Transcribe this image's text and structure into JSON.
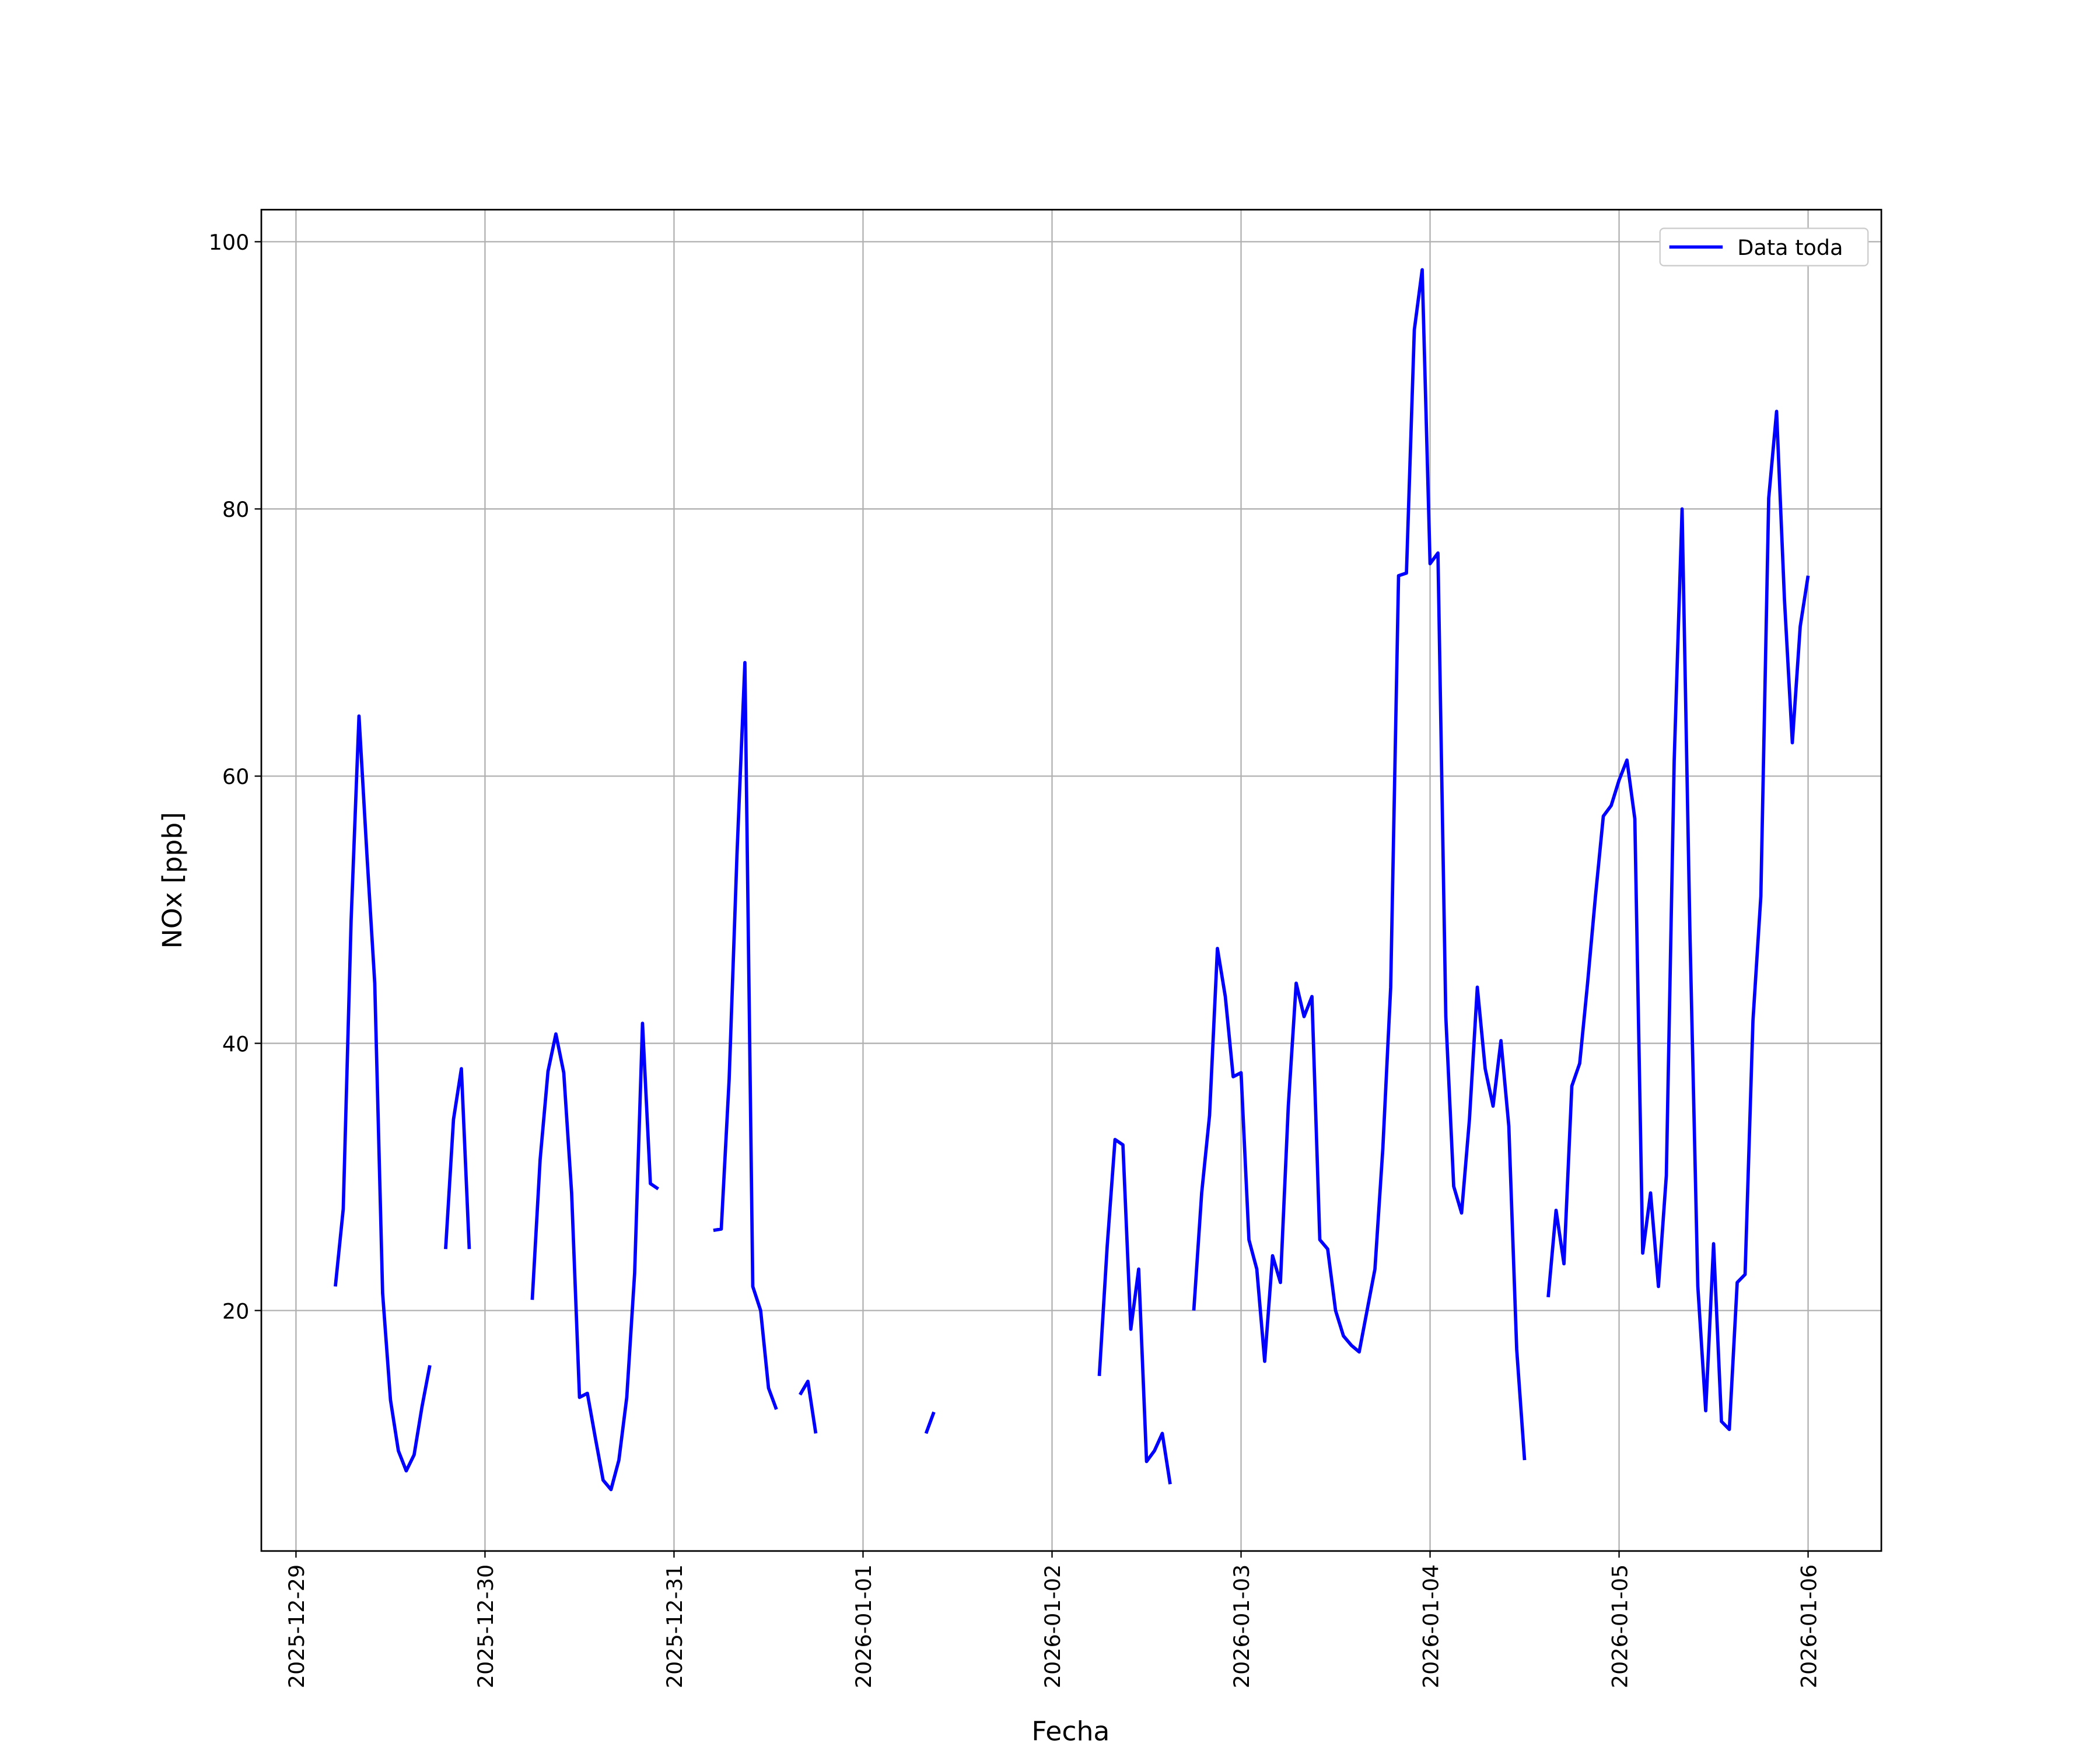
{
  "chart_data": {
    "type": "line",
    "xlabel": "Fecha",
    "ylabel": "NOx [ppb]",
    "x": [
      "2025-12-29 05:00",
      "2025-12-29 06:00",
      "2025-12-29 07:00",
      "2025-12-29 08:00",
      "2025-12-29 09:00",
      "2025-12-29 10:00",
      "2025-12-29 11:00",
      "2025-12-29 12:00",
      "2025-12-29 13:00",
      "2025-12-29 14:00",
      "2025-12-29 15:00",
      "2025-12-29 16:00",
      "2025-12-29 17:00",
      "2025-12-29 18:00",
      "2025-12-29 19:00",
      "2025-12-29 20:00",
      "2025-12-29 21:00",
      "2025-12-29 22:00",
      "2025-12-29 23:00",
      "2025-12-30 06:00",
      "2025-12-30 07:00",
      "2025-12-30 08:00",
      "2025-12-30 09:00",
      "2025-12-30 10:00",
      "2025-12-30 11:00",
      "2025-12-30 12:00",
      "2025-12-30 13:00",
      "2025-12-30 14:00",
      "2025-12-30 15:00",
      "2025-12-30 16:00",
      "2025-12-30 17:00",
      "2025-12-30 18:00",
      "2025-12-30 19:00",
      "2025-12-30 20:00",
      "2025-12-30 21:00",
      "2025-12-30 22:00",
      "2025-12-30 23:00",
      "2025-12-31 05:00",
      "2025-12-31 06:00",
      "2025-12-31 07:00",
      "2025-12-31 08:00",
      "2025-12-31 09:00",
      "2025-12-31 10:00",
      "2025-12-31 11:00",
      "2025-12-31 12:00",
      "2025-12-31 13:00",
      "2025-12-31 14:00",
      "2025-12-31 16:00",
      "2025-12-31 17:00",
      "2025-12-31 18:00",
      "2025-12-31 19:00",
      "2026-01-01 08:00",
      "2026-01-01 09:00",
      "2026-01-01 10:00",
      "2026-01-02 06:00",
      "2026-01-02 07:00",
      "2026-01-02 08:00",
      "2026-01-02 09:00",
      "2026-01-02 10:00",
      "2026-01-02 11:00",
      "2026-01-02 12:00",
      "2026-01-02 13:00",
      "2026-01-02 14:00",
      "2026-01-02 15:00",
      "2026-01-02 16:00",
      "2026-01-02 18:00",
      "2026-01-02 19:00",
      "2026-01-02 20:00",
      "2026-01-02 21:00",
      "2026-01-02 22:00",
      "2026-01-02 23:00",
      "2026-01-03 00:00",
      "2026-01-03 01:00",
      "2026-01-03 02:00",
      "2026-01-03 03:00",
      "2026-01-03 04:00",
      "2026-01-03 05:00",
      "2026-01-03 06:00",
      "2026-01-03 07:00",
      "2026-01-03 08:00",
      "2026-01-03 09:00",
      "2026-01-03 10:00",
      "2026-01-03 11:00",
      "2026-01-03 12:00",
      "2026-01-03 13:00",
      "2026-01-03 14:00",
      "2026-01-03 15:00",
      "2026-01-03 16:00",
      "2026-01-03 17:00",
      "2026-01-03 18:00",
      "2026-01-03 19:00",
      "2026-01-03 20:00",
      "2026-01-03 21:00",
      "2026-01-03 22:00",
      "2026-01-03 23:00",
      "2026-01-04 00:00",
      "2026-01-04 01:00",
      "2026-01-04 02:00",
      "2026-01-04 03:00",
      "2026-01-04 04:00",
      "2026-01-04 05:00",
      "2026-01-04 06:00",
      "2026-01-04 07:00",
      "2026-01-04 08:00",
      "2026-01-04 09:00",
      "2026-01-04 10:00",
      "2026-01-04 11:00",
      "2026-01-04 12:00",
      "2026-01-04 13:00",
      "2026-01-04 15:00",
      "2026-01-04 16:00",
      "2026-01-04 17:00",
      "2026-01-04 18:00",
      "2026-01-04 19:00",
      "2026-01-04 20:00",
      "2026-01-04 21:00",
      "2026-01-04 22:00",
      "2026-01-04 23:00",
      "2026-01-05 00:00",
      "2026-01-05 01:00",
      "2026-01-05 02:00",
      "2026-01-05 03:00",
      "2026-01-05 04:00",
      "2026-01-05 05:00",
      "2026-01-05 06:00",
      "2026-01-05 07:00",
      "2026-01-05 08:00",
      "2026-01-05 09:00",
      "2026-01-05 10:00",
      "2026-01-05 11:00",
      "2026-01-05 12:00",
      "2026-01-05 13:00",
      "2026-01-05 14:00",
      "2026-01-05 15:00",
      "2026-01-05 16:00",
      "2026-01-05 17:00",
      "2026-01-05 18:00",
      "2026-01-05 19:00",
      "2026-01-05 20:00",
      "2026-01-05 21:00",
      "2026-01-05 22:00",
      "2026-01-05 23:00",
      "2026-01-06 00:00"
    ],
    "series": [
      {
        "name": "Data toda",
        "color": "#0000ff",
        "values": [
          21.8,
          27.6,
          49.2,
          64.5,
          54.2,
          44.5,
          21.3,
          13.3,
          9.5,
          8.0,
          9.2,
          12.8,
          15.9,
          null,
          24.6,
          34.3,
          38.1,
          24.6,
          null,
          20.8,
          31.3,
          37.9,
          40.7,
          37.8,
          28.8,
          13.5,
          13.8,
          10.5,
          7.3,
          6.6,
          8.8,
          13.5,
          22.8,
          41.5,
          29.5,
          29.1,
          null,
          26.0,
          26.1,
          37.3,
          54.2,
          68.5,
          21.8,
          20.0,
          14.2,
          12.6,
          null,
          13.7,
          14.7,
          10.8,
          null,
          10.8,
          12.4,
          null,
          15.1,
          24.8,
          32.8,
          32.4,
          18.6,
          23.1,
          8.7,
          9.5,
          10.8,
          7.0,
          null,
          20.0,
          28.8,
          34.6,
          47.1,
          43.5,
          37.5,
          37.8,
          25.3,
          23.1,
          16.2,
          24.1,
          22.1,
          35.3,
          44.5,
          42.0,
          43.5,
          25.3,
          24.6,
          20.0,
          18.1,
          17.4,
          16.9,
          20.0,
          23.1,
          32.1,
          44.2,
          75.0,
          75.2,
          93.4,
          97.9,
          75.9,
          76.7,
          42.0,
          29.3,
          27.3,
          34.3,
          44.2,
          38.1,
          35.3,
          40.2,
          33.8,
          17.1,
          8.8,
          null,
          21.0,
          27.5,
          23.5,
          36.8,
          38.5,
          44.5,
          51.0,
          57.0,
          57.8,
          59.7,
          61.2,
          56.8,
          24.3,
          28.8,
          21.8,
          30.1,
          61.2,
          80.0,
          48.2,
          21.8,
          12.5,
          25.0,
          11.7,
          11.1,
          22.1,
          22.7,
          41.7,
          51.0,
          80.8,
          87.3,
          73.2,
          62.5,
          71.2,
          75.0
        ]
      }
    ],
    "xlim": [
      "2025-12-28 19:36",
      "2026-01-06 09:18"
    ],
    "xticks": [
      "2025-12-29",
      "2025-12-30",
      "2025-12-31",
      "2026-01-01",
      "2026-01-02",
      "2026-01-03",
      "2026-01-04",
      "2026-01-05",
      "2026-01-06"
    ],
    "ylim": [
      2.0,
      102.4
    ],
    "yticks": [
      20,
      40,
      60,
      80,
      100
    ],
    "grid": true,
    "legend": "upper right"
  }
}
